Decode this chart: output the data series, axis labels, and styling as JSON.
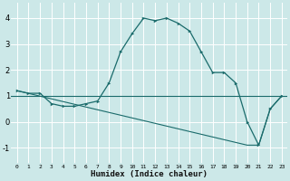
{
  "title": "",
  "xlabel": "Humidex (Indice chaleur)",
  "ylabel": "",
  "bg_color": "#cce8e8",
  "grid_color": "#aacccc",
  "line_color": "#1a6b6b",
  "xlim": [
    -0.5,
    23.5
  ],
  "ylim": [
    -1.6,
    4.6
  ],
  "xticks": [
    0,
    1,
    2,
    3,
    4,
    5,
    6,
    7,
    8,
    9,
    10,
    11,
    12,
    13,
    14,
    15,
    16,
    17,
    18,
    19,
    20,
    21,
    22,
    23
  ],
  "yticks": [
    -1,
    0,
    1,
    2,
    3,
    4
  ],
  "line1_x": [
    0,
    1,
    2,
    3,
    4,
    5,
    6,
    7,
    8,
    9,
    10,
    11,
    12,
    13,
    14,
    15,
    16,
    17,
    18,
    19,
    20,
    21,
    22,
    23
  ],
  "line1_y": [
    1.2,
    1.1,
    1.1,
    0.7,
    0.6,
    0.6,
    0.7,
    0.8,
    1.5,
    2.7,
    3.4,
    4.0,
    3.9,
    4.0,
    3.8,
    3.5,
    2.7,
    1.9,
    1.9,
    1.5,
    0.0,
    -0.9,
    0.5,
    1.0
  ],
  "line2_x": [
    0,
    23
  ],
  "line2_y": [
    1.0,
    1.0
  ],
  "line3_x": [
    0,
    1,
    2,
    23
  ],
  "line3_y": [
    1.2,
    1.1,
    1.1,
    1.0
  ],
  "line4_x": [
    0,
    20,
    21,
    22,
    23
  ],
  "line4_y": [
    1.2,
    -0.9,
    -0.9,
    0.5,
    1.0
  ]
}
